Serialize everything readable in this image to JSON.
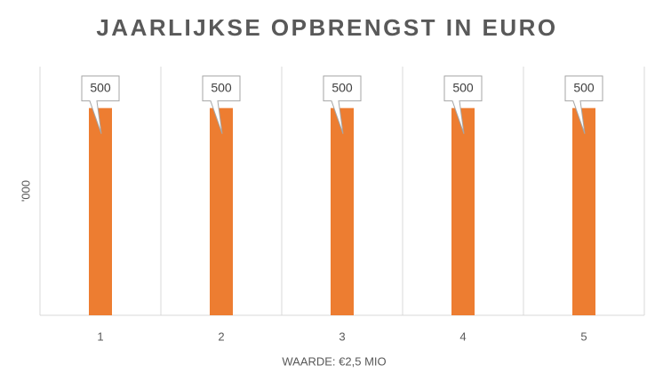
{
  "chart_data": {
    "type": "bar",
    "title": "JAARLIJKSE OPBRENGST IN EURO",
    "x_label": "WAARDE: €2,5 MIO",
    "y_label": "'000",
    "categories": [
      "1",
      "2",
      "3",
      "4",
      "5"
    ],
    "values": [
      500,
      500,
      500,
      500,
      500
    ],
    "color": "#ed7d31",
    "ylim": [
      0,
      600
    ],
    "grid": true
  }
}
